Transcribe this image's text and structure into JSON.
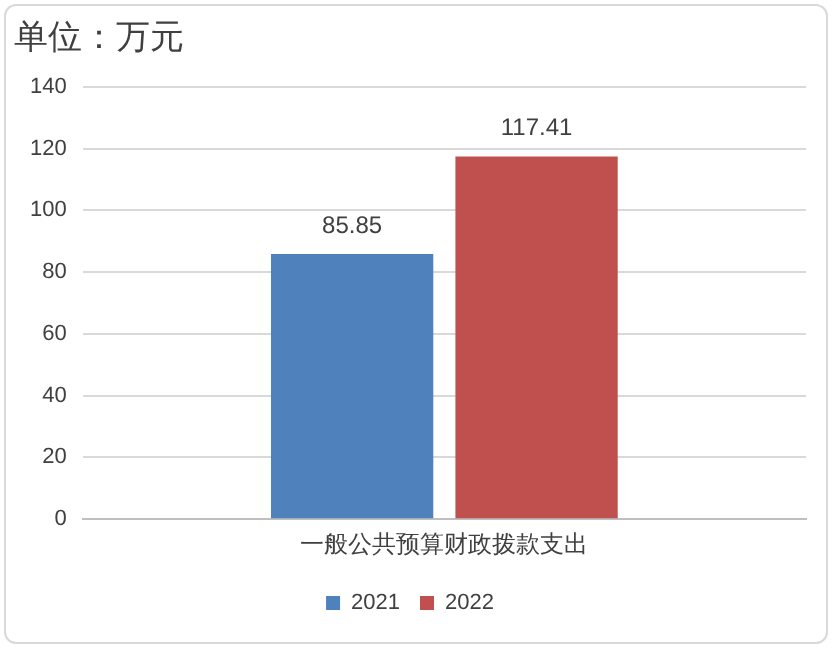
{
  "chart_data": {
    "type": "bar",
    "title": "单位：万元",
    "categories": [
      "一般公共预算财政拨款支出"
    ],
    "series": [
      {
        "name": "2021",
        "color": "#4f81bd",
        "values": [
          85.85
        ]
      },
      {
        "name": "2022",
        "color": "#c0504d",
        "values": [
          117.41
        ]
      }
    ],
    "ylim": [
      0,
      140
    ],
    "yticks": [
      0,
      20,
      40,
      60,
      80,
      100,
      120,
      140
    ],
    "grid": "y",
    "legend": "bottom",
    "data_labels": true
  }
}
